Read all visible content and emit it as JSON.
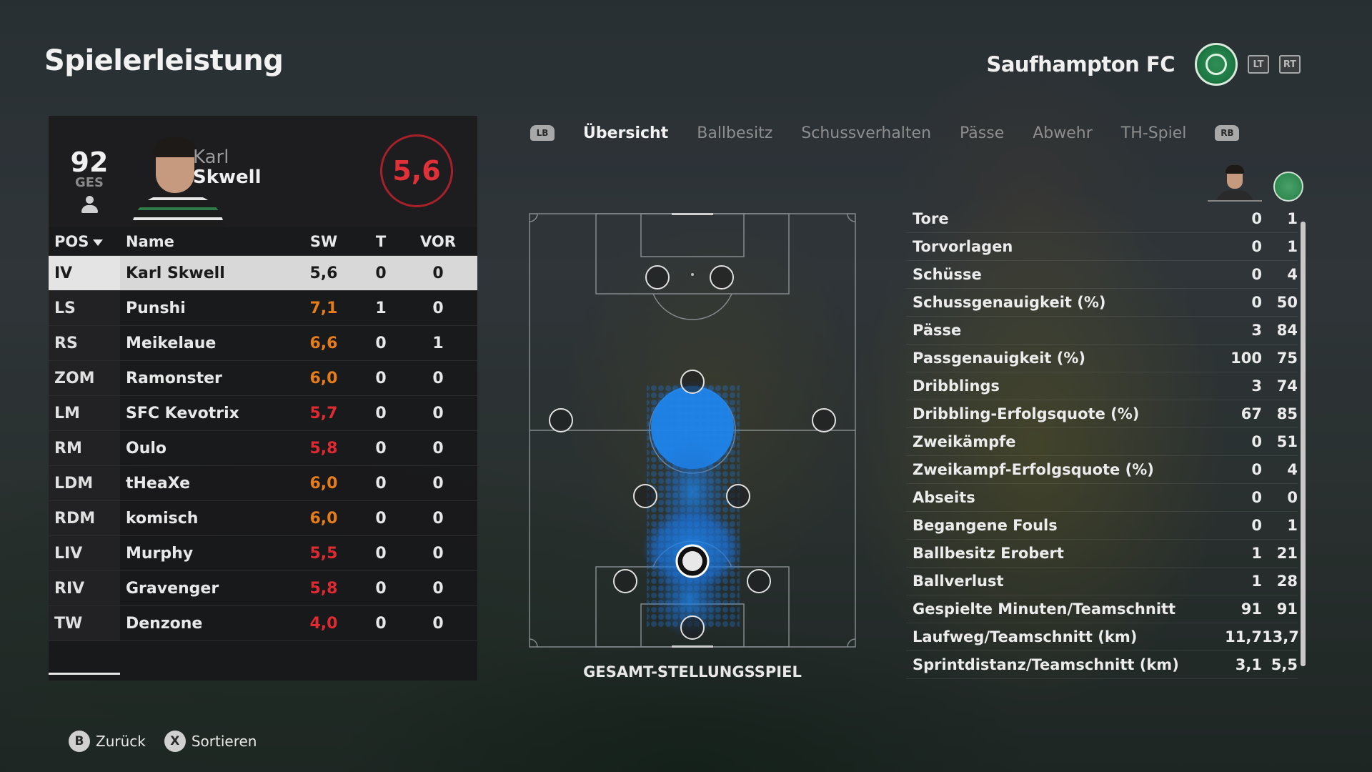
{
  "page": {
    "title": "Spielerleistung"
  },
  "club": {
    "name": "Saufhampton FC",
    "lt": "LT",
    "rt": "RT",
    "crest_icon": "celtic-clover-crest",
    "crest_color": "#1f7a45"
  },
  "player": {
    "overall": "92",
    "overall_label": "GES",
    "first_name": "Karl",
    "last_name": "Skwell",
    "match_rating": "5,6",
    "rating_color": "#e03038"
  },
  "table": {
    "headers": {
      "pos": "POS",
      "name": "Name",
      "sw": "SW",
      "t": "T",
      "vor": "VOR"
    },
    "rows": [
      {
        "pos": "IV",
        "name": "Karl Skwell",
        "sw": "5,6",
        "t": "0",
        "vor": "0",
        "tone": "selected"
      },
      {
        "pos": "LS",
        "name": "Punshi",
        "sw": "7,1",
        "t": "1",
        "vor": "0",
        "tone": "orange"
      },
      {
        "pos": "RS",
        "name": "Meikelaue",
        "sw": "6,6",
        "t": "0",
        "vor": "1",
        "tone": "orange"
      },
      {
        "pos": "ZOM",
        "name": "Ramonster",
        "sw": "6,0",
        "t": "0",
        "vor": "0",
        "tone": "orange"
      },
      {
        "pos": "LM",
        "name": "SFC Kevotrix",
        "sw": "5,7",
        "t": "0",
        "vor": "0",
        "tone": "red"
      },
      {
        "pos": "RM",
        "name": "Oulo",
        "sw": "5,8",
        "t": "0",
        "vor": "0",
        "tone": "red"
      },
      {
        "pos": "LDM",
        "name": "tHeaXe",
        "sw": "6,0",
        "t": "0",
        "vor": "0",
        "tone": "orange"
      },
      {
        "pos": "RDM",
        "name": "komisch",
        "sw": "6,0",
        "t": "0",
        "vor": "0",
        "tone": "orange"
      },
      {
        "pos": "LIV",
        "name": "Murphy",
        "sw": "5,5",
        "t": "0",
        "vor": "0",
        "tone": "red"
      },
      {
        "pos": "RIV",
        "name": "Gravenger",
        "sw": "5,8",
        "t": "0",
        "vor": "0",
        "tone": "red"
      },
      {
        "pos": "TW",
        "name": "Denzone",
        "sw": "4,0",
        "t": "0",
        "vor": "0",
        "tone": "red"
      }
    ]
  },
  "tabs": {
    "lb": "LB",
    "rb": "RB",
    "items": [
      {
        "label": "Übersicht",
        "active": true
      },
      {
        "label": "Ballbesitz",
        "active": false
      },
      {
        "label": "Schussverhalten",
        "active": false
      },
      {
        "label": "Pässe",
        "active": false
      },
      {
        "label": "Abwehr",
        "active": false
      },
      {
        "label": "TH-Spiel",
        "active": false
      }
    ]
  },
  "pitch": {
    "caption": "GESAMT-STELLUNGSSPIEL",
    "heat_color": "#1e78e0"
  },
  "stats": {
    "rows": [
      {
        "label": "Tore",
        "player": "0",
        "team": "1"
      },
      {
        "label": "Torvorlagen",
        "player": "0",
        "team": "1"
      },
      {
        "label": "Schüsse",
        "player": "0",
        "team": "4"
      },
      {
        "label": "Schussgenauigkeit (%)",
        "player": "0",
        "team": "50"
      },
      {
        "label": "Pässe",
        "player": "3",
        "team": "84"
      },
      {
        "label": "Passgenauigkeit (%)",
        "player": "100",
        "team": "75"
      },
      {
        "label": "Dribblings",
        "player": "3",
        "team": "74"
      },
      {
        "label": "Dribbling-Erfolgsquote (%)",
        "player": "67",
        "team": "85"
      },
      {
        "label": "Zweikämpfe",
        "player": "0",
        "team": "51"
      },
      {
        "label": "Zweikampf-Erfolgsquote (%)",
        "player": "0",
        "team": "4"
      },
      {
        "label": "Abseits",
        "player": "0",
        "team": "0"
      },
      {
        "label": "Begangene Fouls",
        "player": "0",
        "team": "1"
      },
      {
        "label": "Ballbesitz Erobert",
        "player": "1",
        "team": "21"
      },
      {
        "label": "Ballverlust",
        "player": "1",
        "team": "28"
      },
      {
        "label": "Gespielte Minuten/Teamschnitt",
        "player": "91",
        "team": "91"
      },
      {
        "label": "Laufweg/Teamschnitt (km)",
        "player": "11,7",
        "team": "13,7"
      },
      {
        "label": "Sprintdistanz/Teamschnitt (km)",
        "player": "3,1",
        "team": "5,5"
      }
    ]
  },
  "footer": {
    "back_glyph": "B",
    "back_label": "Zurück",
    "sort_glyph": "X",
    "sort_label": "Sortieren"
  }
}
